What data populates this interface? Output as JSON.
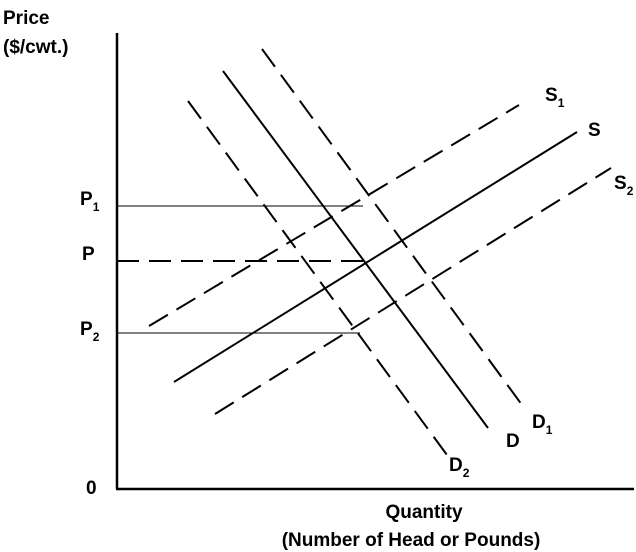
{
  "axis_labels": {
    "y_title_line1": "Price",
    "y_title_line2": "($/cwt.)",
    "x_title_line1": "Quantity",
    "x_title_line2": "(Number of Head or Pounds)",
    "origin": "0"
  },
  "price_levels": [
    {
      "letter": "P",
      "subscript": "1"
    },
    {
      "letter": "P",
      "subscript": ""
    },
    {
      "letter": "P",
      "subscript": "2"
    }
  ],
  "curves": {
    "S1": {
      "letter": "S",
      "subscript": "1",
      "style": "dashed"
    },
    "S": {
      "letter": "S",
      "subscript": "",
      "style": "solid"
    },
    "S2": {
      "letter": "S",
      "subscript": "2",
      "style": "dashed"
    },
    "D1": {
      "letter": "D",
      "subscript": "1",
      "style": "dashed"
    },
    "D": {
      "letter": "D",
      "subscript": "",
      "style": "solid"
    },
    "D2": {
      "letter": "D",
      "subscript": "2",
      "style": "dashed"
    }
  },
  "colors": {
    "ink": "#000000",
    "background": "#ffffff"
  }
}
